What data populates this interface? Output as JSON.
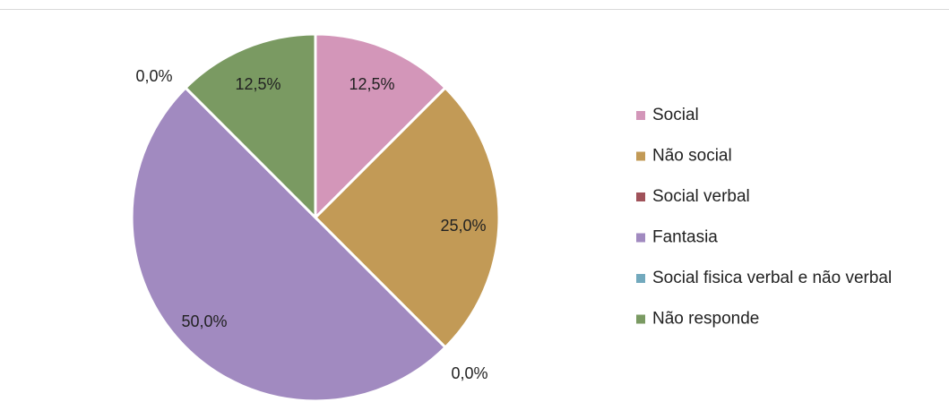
{
  "chart_data": {
    "type": "pie",
    "categories": [
      "Social",
      "Não social",
      "Social verbal",
      "Fantasia",
      "Social fisica verbal e não verbal",
      "Não responde"
    ],
    "values": [
      12.5,
      25.0,
      0.0,
      50.0,
      0.0,
      12.5
    ],
    "labels": [
      "12,5%",
      "25,0%",
      "0,0%",
      "50,0%",
      "0,0%",
      "12,5%"
    ],
    "colors": [
      "#d396b9",
      "#c29a56",
      "#a0525a",
      "#a18ac0",
      "#72a9bd",
      "#7a9a62"
    ],
    "legend_position": "right",
    "start_angle": "top, clockwise"
  }
}
